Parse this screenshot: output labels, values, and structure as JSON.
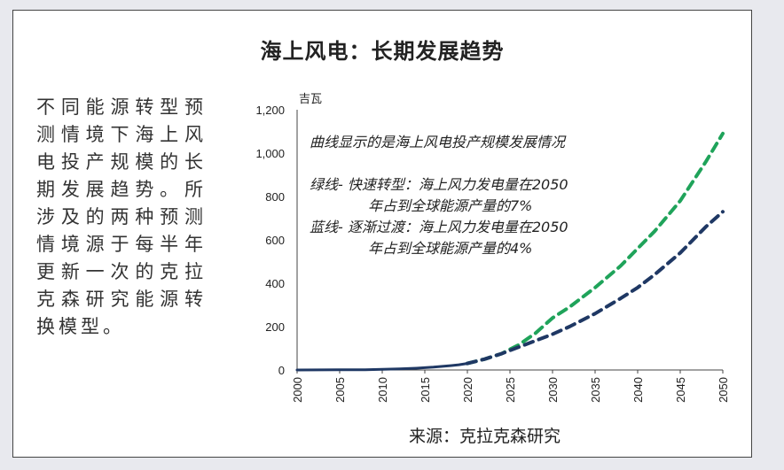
{
  "title": "海上风电：长期发展趋势",
  "description": "不同能源转型预测情境下海上风电投产规模的长期发展趋势。所涉及的两种预测情境源于每半年更新一次的克拉克森研究能源转换模型。",
  "source": "来源：克拉克森研究",
  "chart_data": {
    "type": "line",
    "ylabel": "吉瓦",
    "xlim": [
      2000,
      2050
    ],
    "ylim": [
      0,
      1200
    ],
    "x_ticks": [
      "2000",
      "2005",
      "2010",
      "2015",
      "2020",
      "2025",
      "2030",
      "2035",
      "2040",
      "2045",
      "2050"
    ],
    "y_ticks": [
      "0",
      "200",
      "400",
      "600",
      "800",
      "1,000",
      "1,200"
    ],
    "annotations": {
      "main": "曲线显示的是海上风电投产规模发展情况",
      "green_1": "绿线- 快速转型：海上风力发电量在2050",
      "green_2": "年占到全球能源产量的7%",
      "blue_1": "蓝线- 逐渐过渡：海上风力发电量在2050",
      "blue_2": "年占到全球能源产量的4%"
    },
    "historical": {
      "color": "#1f3864",
      "x": [
        2000,
        2005,
        2008,
        2010,
        2012,
        2014,
        2016,
        2018,
        2019,
        2020
      ],
      "y": [
        0,
        1,
        1,
        3,
        5,
        8,
        13,
        20,
        24,
        30
      ]
    },
    "series": [
      {
        "color": "#1fa35a",
        "dashed": true,
        "x": [
          2020,
          2022,
          2024,
          2026,
          2028,
          2030,
          2032,
          2035,
          2038,
          2040,
          2042,
          2045,
          2048,
          2050
        ],
        "y": [
          30,
          50,
          75,
          115,
          170,
          240,
          290,
          380,
          480,
          560,
          640,
          780,
          960,
          1090
        ]
      },
      {
        "color": "#1f3864",
        "dashed": true,
        "x": [
          2020,
          2022,
          2024,
          2026,
          2028,
          2030,
          2032,
          2035,
          2038,
          2040,
          2042,
          2045,
          2048,
          2050
        ],
        "y": [
          30,
          50,
          75,
          105,
          135,
          165,
          200,
          260,
          330,
          380,
          440,
          540,
          660,
          730
        ]
      }
    ],
    "legend": "none",
    "grid": false
  }
}
